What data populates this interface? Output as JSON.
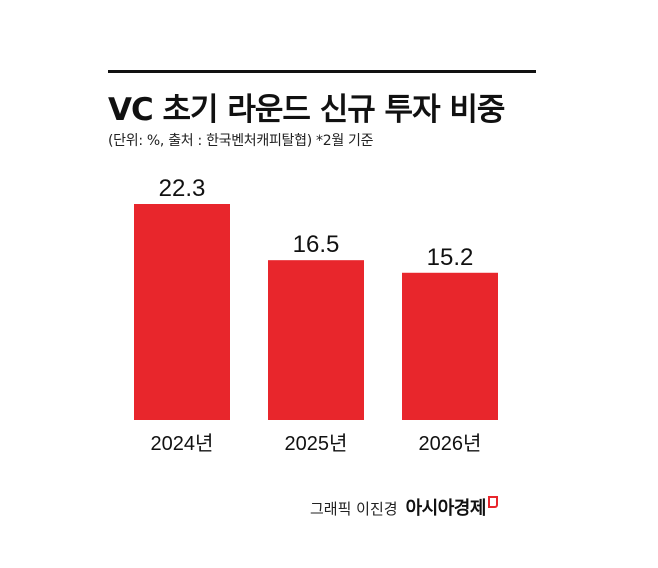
{
  "header": {
    "title": "VC 초기 라운드 신규 투자 비중",
    "subtitle": "(단위: %, 출처 : 한국벤처캐피탈협)  *2월 기준"
  },
  "footer": {
    "credit": "그래픽 이진경",
    "brand": "아시아경제"
  },
  "colors": {
    "bar": "#e8262c",
    "text": "#111111",
    "background": "#ffffff"
  },
  "chart_data": {
    "type": "bar",
    "categories": [
      "2024년",
      "2025년",
      "2026년"
    ],
    "values": [
      22.3,
      16.5,
      15.2
    ],
    "data_labels": [
      "22.3",
      "16.5",
      "15.2"
    ],
    "title": "VC 초기 라운드 신규 투자 비중",
    "xlabel": "",
    "ylabel": "",
    "ylim": [
      0,
      22.3
    ],
    "grid": false,
    "legend": "none"
  }
}
